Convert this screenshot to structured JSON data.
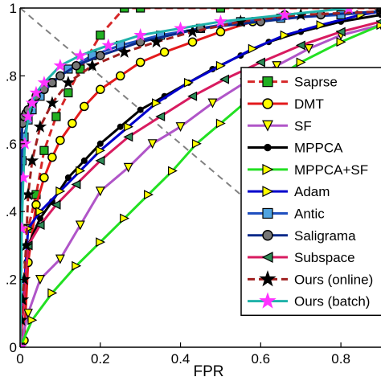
{
  "chart_data": {
    "type": "line",
    "xlabel": "FPR",
    "ylabel": "",
    "xlim": [
      0,
      0.9
    ],
    "ylim": [
      0,
      1
    ],
    "x_ticks": [
      "0",
      "0.2",
      "0.4",
      "0.6",
      "0.8"
    ],
    "x_tick_values": [
      0,
      0.2,
      0.4,
      0.6,
      0.8
    ],
    "y_ticks": [
      "0",
      ".2",
      ".4",
      ".6",
      ".8",
      "1"
    ],
    "y_tick_values": [
      0,
      0.2,
      0.4,
      0.6,
      0.8,
      1
    ],
    "grid": false,
    "legend_position": "right",
    "diagonal": {
      "color": "#808080",
      "from": [
        0,
        1
      ],
      "to": [
        1,
        0
      ]
    },
    "series": [
      {
        "name": "Saprse",
        "color": "#d62728",
        "marker": "square",
        "marker_color": "#22b022",
        "dash": true,
        "x": [
          0,
          0.02,
          0.04,
          0.06,
          0.09,
          0.12,
          0.15,
          0.2,
          0.26,
          0.3,
          0.5,
          0.9
        ],
        "y": [
          0,
          0.35,
          0.45,
          0.58,
          0.68,
          0.75,
          0.82,
          0.92,
          1.0,
          1.0,
          1.0,
          1.0
        ]
      },
      {
        "name": "DMT",
        "color": "#e31a1c",
        "marker": "circle",
        "marker_color": "#ffff00",
        "x": [
          0.01,
          0.02,
          0.04,
          0.06,
          0.08,
          0.1,
          0.13,
          0.16,
          0.2,
          0.25,
          0.3,
          0.36,
          0.43,
          0.5,
          0.58,
          0.66
        ],
        "y": [
          0.02,
          0.25,
          0.42,
          0.5,
          0.56,
          0.61,
          0.66,
          0.71,
          0.76,
          0.8,
          0.84,
          0.87,
          0.9,
          0.93,
          0.96,
          0.98
        ]
      },
      {
        "name": "SF",
        "color": "#b055c8",
        "marker": "triangle-down",
        "marker_color": "#ffff00",
        "x": [
          0,
          0.02,
          0.05,
          0.1,
          0.15,
          0.2,
          0.27,
          0.33,
          0.4,
          0.48,
          0.56,
          0.64,
          0.72,
          0.8,
          0.9
        ],
        "y": [
          0,
          0.1,
          0.2,
          0.26,
          0.36,
          0.46,
          0.53,
          0.6,
          0.65,
          0.72,
          0.78,
          0.83,
          0.88,
          0.92,
          0.95
        ]
      },
      {
        "name": "MPPCA",
        "color": "#000000",
        "marker": "dot",
        "marker_color": "#000000",
        "x": [
          0,
          0.02,
          0.05,
          0.08,
          0.12,
          0.16,
          0.2,
          0.25,
          0.3,
          0.36,
          0.42,
          0.48,
          0.55,
          0.62,
          0.7,
          0.8,
          0.9
        ],
        "y": [
          0,
          0.3,
          0.38,
          0.43,
          0.5,
          0.55,
          0.6,
          0.65,
          0.7,
          0.74,
          0.78,
          0.82,
          0.86,
          0.9,
          0.93,
          0.96,
          0.98
        ]
      },
      {
        "name": "MPPCA+SF",
        "color": "#22e022",
        "marker": "triangle-right",
        "marker_color": "#ffff00",
        "x": [
          0,
          0.03,
          0.08,
          0.14,
          0.2,
          0.26,
          0.32,
          0.38,
          0.44,
          0.5,
          0.56,
          0.62,
          0.7,
          0.8,
          0.9
        ],
        "y": [
          0,
          0.08,
          0.16,
          0.24,
          0.31,
          0.38,
          0.45,
          0.52,
          0.6,
          0.66,
          0.72,
          0.78,
          0.84,
          0.9,
          0.95
        ]
      },
      {
        "name": "Adam",
        "color": "#0000cc",
        "marker": "triangle-right",
        "marker_color": "#ffff00",
        "x": [
          0,
          0.02,
          0.05,
          0.1,
          0.15,
          0.2,
          0.27,
          0.34,
          0.42,
          0.5,
          0.58,
          0.66,
          0.75,
          0.85,
          0.9
        ],
        "y": [
          0,
          0.35,
          0.4,
          0.46,
          0.52,
          0.58,
          0.65,
          0.72,
          0.78,
          0.83,
          0.88,
          0.92,
          0.95,
          0.98,
          0.99
        ]
      },
      {
        "name": "Antic",
        "color": "#1f4fbf",
        "marker": "square",
        "marker_color": "#4fa3e0",
        "x": [
          0,
          0.005,
          0.01,
          0.02,
          0.03,
          0.05,
          0.08,
          0.12,
          0.18,
          0.25,
          0.35,
          0.45,
          0.55,
          0.65,
          0.8,
          0.9
        ],
        "y": [
          0,
          0.55,
          0.62,
          0.67,
          0.7,
          0.74,
          0.78,
          0.82,
          0.86,
          0.89,
          0.92,
          0.94,
          0.96,
          0.97,
          0.98,
          0.99
        ]
      },
      {
        "name": "Saligrama",
        "color": "#0a2a8a",
        "marker": "circle",
        "marker_color": "#777777",
        "x": [
          0,
          0.003,
          0.006,
          0.01,
          0.015,
          0.02,
          0.03,
          0.04,
          0.06,
          0.08,
          0.1,
          0.14,
          0.2,
          0.3,
          0.45,
          0.6,
          0.75,
          0.9
        ],
        "y": [
          0,
          0.6,
          0.66,
          0.68,
          0.69,
          0.7,
          0.72,
          0.74,
          0.76,
          0.78,
          0.8,
          0.83,
          0.86,
          0.9,
          0.94,
          0.96,
          0.98,
          0.99
        ]
      },
      {
        "name": "Subspace",
        "color": "#d81b60",
        "marker": "triangle-left",
        "marker_color": "#2e8b57",
        "x": [
          0,
          0.02,
          0.05,
          0.09,
          0.14,
          0.2,
          0.27,
          0.35,
          0.43,
          0.51,
          0.6,
          0.7,
          0.8,
          0.9
        ],
        "y": [
          0,
          0.3,
          0.36,
          0.42,
          0.48,
          0.55,
          0.62,
          0.68,
          0.74,
          0.79,
          0.84,
          0.89,
          0.93,
          0.96
        ]
      },
      {
        "name": "Ours (online)",
        "color": "#a02020",
        "marker": "star",
        "marker_color": "#000000",
        "dash": true,
        "x": [
          0,
          0.003,
          0.006,
          0.01,
          0.015,
          0.02,
          0.03,
          0.05,
          0.08,
          0.12,
          0.18,
          0.26,
          0.34,
          0.43,
          0.55,
          0.7,
          0.9
        ],
        "y": [
          0,
          0.08,
          0.14,
          0.2,
          0.3,
          0.45,
          0.55,
          0.65,
          0.72,
          0.78,
          0.83,
          0.87,
          0.9,
          0.93,
          0.96,
          0.98,
          0.99
        ]
      },
      {
        "name": "Ours (batch)",
        "color": "#20b2aa",
        "marker": "star",
        "marker_color": "#ff33ff",
        "x": [
          0,
          0.004,
          0.008,
          0.012,
          0.02,
          0.03,
          0.04,
          0.06,
          0.1,
          0.15,
          0.22,
          0.3,
          0.4,
          0.5,
          0.66,
          0.82
        ],
        "y": [
          0,
          0.35,
          0.5,
          0.6,
          0.68,
          0.72,
          0.75,
          0.78,
          0.83,
          0.86,
          0.89,
          0.92,
          0.94,
          0.96,
          0.98,
          1.0
        ]
      }
    ]
  }
}
